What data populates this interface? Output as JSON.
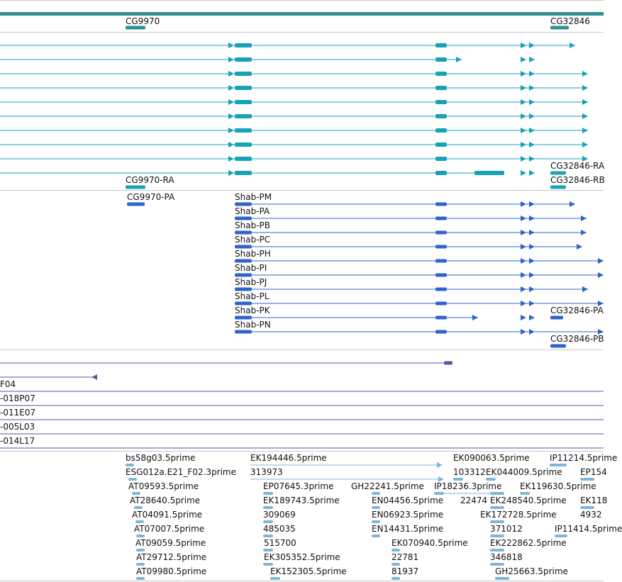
{
  "colors": {
    "gene_track": "#2f8f8f",
    "transcript_rna": "#17a2b8",
    "protein": "#2f64c8",
    "clone": "#6a4ca0",
    "est": "#7eb6d9",
    "separator": "#c8c8c8"
  },
  "genes": {
    "gene_1": "CG9970",
    "gene_2": "CG32846"
  },
  "transcripts": {
    "gene_1_ra": "CG9970-RA",
    "gene_2_ra": "CG32846-RA",
    "gene_2_rb": "CG32846-RB"
  },
  "proteins": {
    "gene_1_pa": "CG9970-PA",
    "shab": [
      "Shab-PM",
      "Shab-PA",
      "Shab-PB",
      "Shab-PC",
      "Shab-PH",
      "Shab-PI",
      "Shab-PJ",
      "Shab-PL",
      "Shab-PK",
      "Shab-PN"
    ],
    "gene_2_pa": "CG32846-PA",
    "gene_2_pb": "CG32846-PB"
  },
  "clones": [
    "F04",
    "-018P07",
    "-011E07",
    "-005L03",
    "-014L17"
  ],
  "ests": [
    "bs58g03.5prime",
    "ESG012a.E21_F02.3prime",
    "AT09593.5prime",
    "AT28640.5prime",
    "AT04091.5prime",
    "AT07007.5prime",
    "AT09059.5prime",
    "AT29712.5prime",
    "AT09980.5prime",
    "EK194446.5prime",
    "313973",
    "EP07645.3prime",
    "EK189743.5prime",
    "309069",
    "485035",
    "515700",
    "EK305352.5prime",
    "EK152305.5prime",
    "GH22241.5prime",
    "EN04456.5prime",
    "EN06923.5prime",
    "EN14431.5prime",
    "EK070940.5prime",
    "22781",
    "81937",
    "EK090063.5prime",
    "103312",
    "EK044009.5prime",
    "IP18236.3prime",
    "22474",
    "EK248540.5prime",
    "EK172728.5prime",
    "371012",
    "EK222862.5prime",
    "346818",
    "GH25663.5prime",
    "IP11214.5prime",
    "EP154",
    "EK119630.5prime",
    "EK118",
    "4932",
    "IP11414.5prime"
  ]
}
